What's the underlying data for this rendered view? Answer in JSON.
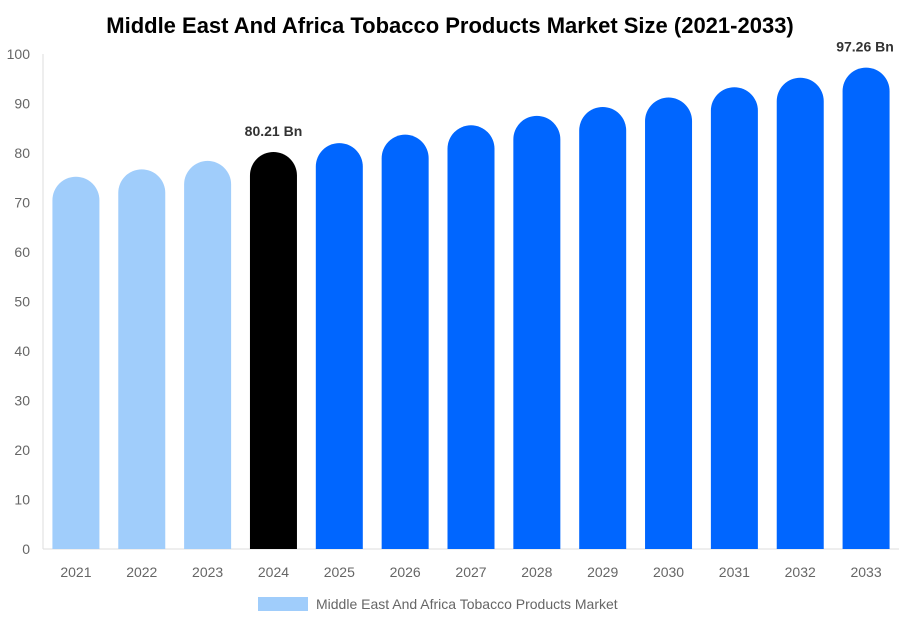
{
  "chart_data": {
    "type": "bar",
    "title": "Middle East And Africa Tobacco Products Market Size (2021-2033)",
    "categories": [
      "2021",
      "2022",
      "2023",
      "2024",
      "2025",
      "2026",
      "2027",
      "2028",
      "2029",
      "2030",
      "2031",
      "2032",
      "2033"
    ],
    "series": [
      {
        "name": "Middle East And Africa Tobacco Products Market",
        "values": [
          75.2,
          76.7,
          78.4,
          80.21,
          82.0,
          83.7,
          85.6,
          87.5,
          89.3,
          91.2,
          93.3,
          95.2,
          97.26
        ]
      }
    ],
    "data_labels": [
      {
        "category": "2024",
        "text": "80.21 Bn"
      },
      {
        "category": "2033",
        "text": "97.26 Bn"
      }
    ],
    "ylim": [
      0,
      100
    ],
    "yticks": [
      "0",
      "10",
      "20",
      "30",
      "40",
      "50",
      "60",
      "70",
      "80",
      "90",
      "100"
    ],
    "xlabel": "",
    "ylabel": "",
    "grid": false,
    "legend_position": "bottom",
    "colors": {
      "historical": "#A0CDFB",
      "base_year": "#000000",
      "forecast": "#0066FF",
      "legend_swatch": "#A0CDFB"
    },
    "bar_color_groups": [
      "historical",
      "historical",
      "historical",
      "base_year",
      "forecast",
      "forecast",
      "forecast",
      "forecast",
      "forecast",
      "forecast",
      "forecast",
      "forecast",
      "forecast"
    ]
  }
}
